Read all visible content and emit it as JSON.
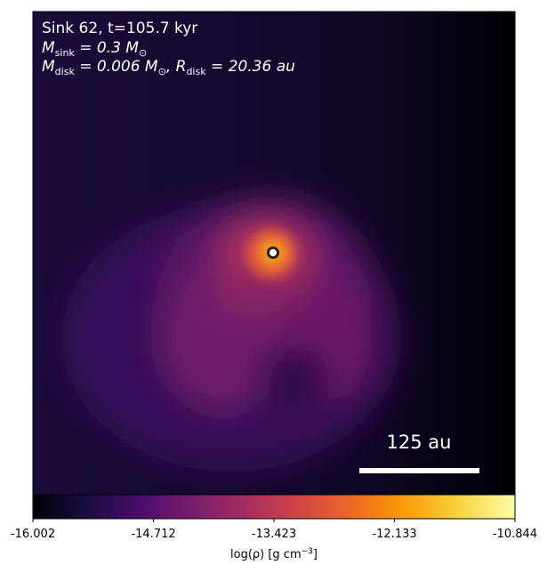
{
  "panel": {
    "title": "Sink 62, t=105.7 kyr",
    "line2": [
      "M",
      "sink",
      " = 0.3 M",
      "⊙"
    ],
    "line3": [
      "M",
      "disk",
      " = 0.006 M",
      "⊙",
      ", R",
      "disk",
      " = 20.36 au"
    ],
    "scale_bar": "125 au"
  },
  "colorbar": {
    "lim": [
      -16.002,
      -10.844
    ],
    "ticks": [
      -16.002,
      -14.712,
      -13.423,
      -12.133,
      -10.844
    ],
    "label": [
      "log(ρ) [g cm",
      "−3",
      "]"
    ]
  }
}
